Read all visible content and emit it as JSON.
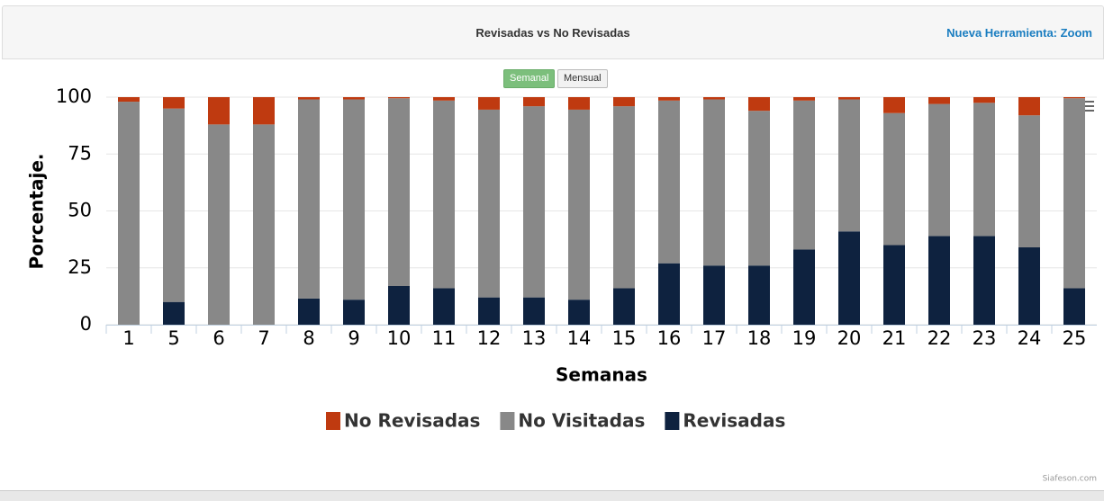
{
  "header": {
    "title": "Revisadas vs No Revisadas",
    "link": "Nueva Herramienta: Zoom"
  },
  "buttons": [
    "Semanal",
    "Mensual"
  ],
  "chart_data": {
    "type": "stacked_bar",
    "xlabel": "Semanas",
    "ylabel": "Porcentaje.",
    "categories": [
      "1",
      "5",
      "6",
      "7",
      "8",
      "9",
      "10",
      "11",
      "12",
      "13",
      "14",
      "15",
      "16",
      "17",
      "18",
      "19",
      "20",
      "21",
      "22",
      "23",
      "24",
      "25"
    ],
    "series": [
      {
        "name": "No Revisadas",
        "color": "#bf3a10",
        "values": [
          2,
          5,
          12,
          12,
          1,
          1,
          0.5,
          1.5,
          5.5,
          4,
          5.5,
          4,
          1.5,
          1,
          6,
          1.5,
          1,
          7,
          3,
          2.5,
          8,
          0.5
        ]
      },
      {
        "name": "No Visitadas",
        "color": "#888888",
        "values": [
          98,
          85,
          88,
          88,
          87.5,
          88,
          82.5,
          82.5,
          82.5,
          84,
          83.5,
          80,
          71.5,
          73,
          68,
          65.5,
          58,
          58,
          58,
          58.5,
          58,
          83.5
        ]
      },
      {
        "name": "Revisadas",
        "color": "#0e223f",
        "values": [
          0,
          10,
          0,
          0,
          11.5,
          11,
          17,
          16,
          12,
          12,
          11,
          16,
          27,
          26,
          26,
          33,
          41,
          35,
          39,
          39,
          34,
          16
        ]
      }
    ],
    "ylim": [
      0,
      100
    ],
    "yticks": [
      0,
      25,
      50,
      75,
      100
    ],
    "grid": true,
    "legend": "bottom"
  },
  "credit": "Siafeson.com"
}
